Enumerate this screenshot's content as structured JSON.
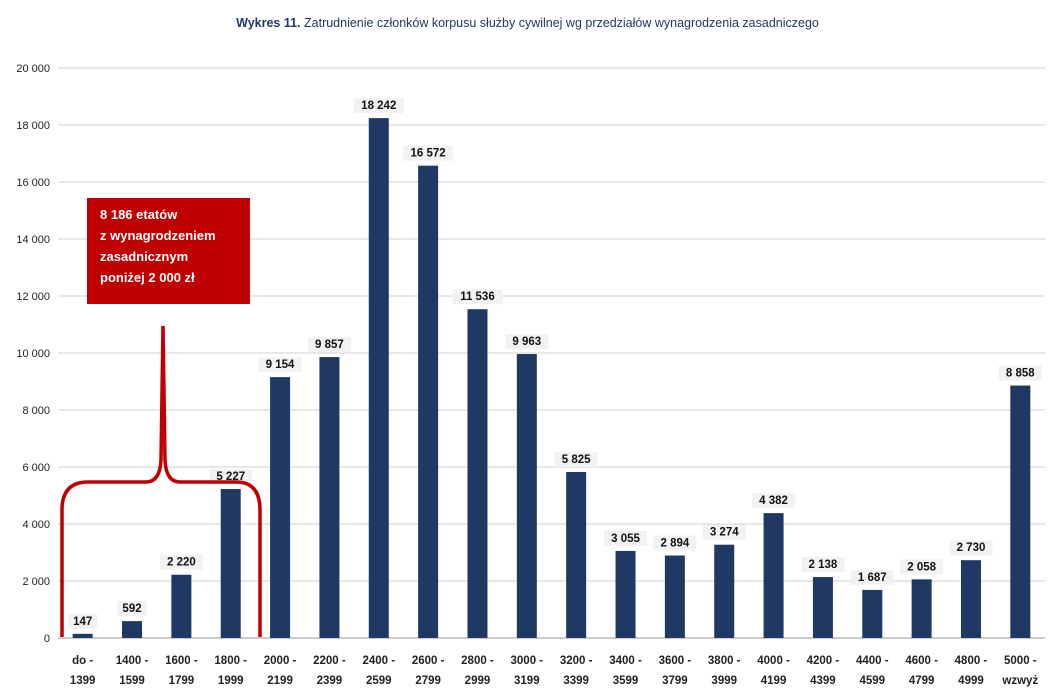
{
  "title": {
    "bold": "Wykres 11.",
    "text": " Zatrudnienie członków korpusu służby cywilnej wg przedziałów wynagrodzenia zasadniczego"
  },
  "callout": [
    "8 186 etatów",
    "z wynagrodzeniem",
    "zasadnicznym",
    "poniżej 2 000 zł"
  ],
  "colors": {
    "bar": "#1f3864",
    "callout": "#c00000",
    "bracket": "#c00000",
    "grid": "#d0d0d0"
  },
  "chart_data": {
    "type": "bar",
    "title": "Wykres 11. Zatrudnienie członków korpusu służby cywilnej wg przedziałów wynagrodzenia zasadniczego",
    "xlabel": "",
    "ylabel": "",
    "ylim": [
      0,
      20000
    ],
    "yticks": [
      "0",
      "2 000",
      "4 000",
      "6 000",
      "8 000",
      "10 000",
      "12 000",
      "14 000",
      "16 000",
      "18 000",
      "20 000"
    ],
    "grid": true,
    "categories": [
      [
        "do -",
        "1399"
      ],
      [
        "1400 -",
        "1599"
      ],
      [
        "1600 -",
        "1799"
      ],
      [
        "1800 -",
        "1999"
      ],
      [
        "2000 -",
        "2199"
      ],
      [
        "2200 -",
        "2399"
      ],
      [
        "2400 -",
        "2599"
      ],
      [
        "2600 -",
        "2799"
      ],
      [
        "2800 -",
        "2999"
      ],
      [
        "3000 -",
        "3199"
      ],
      [
        "3200 -",
        "3399"
      ],
      [
        "3400 -",
        "3599"
      ],
      [
        "3600 -",
        "3799"
      ],
      [
        "3800 -",
        "3999"
      ],
      [
        "4000 -",
        "4199"
      ],
      [
        "4200 -",
        "4399"
      ],
      [
        "4400 -",
        "4599"
      ],
      [
        "4600 -",
        "4799"
      ],
      [
        "4800 -",
        "4999"
      ],
      [
        "5000 -",
        "wzwyż"
      ]
    ],
    "values": [
      147,
      592,
      2220,
      5227,
      9154,
      9857,
      18242,
      16572,
      11536,
      9963,
      5825,
      3055,
      2894,
      3274,
      4382,
      2138,
      1687,
      2058,
      2730,
      8858
    ],
    "labels": [
      "147",
      "592",
      "2 220",
      "5 227",
      "9 154",
      "9 857",
      "18 242",
      "16 572",
      "11 536",
      "9 963",
      "5 825",
      "3 055",
      "2 894",
      "3 274",
      "4 382",
      "2 138",
      "1 687",
      "2 058",
      "2 730",
      "8 858"
    ]
  }
}
